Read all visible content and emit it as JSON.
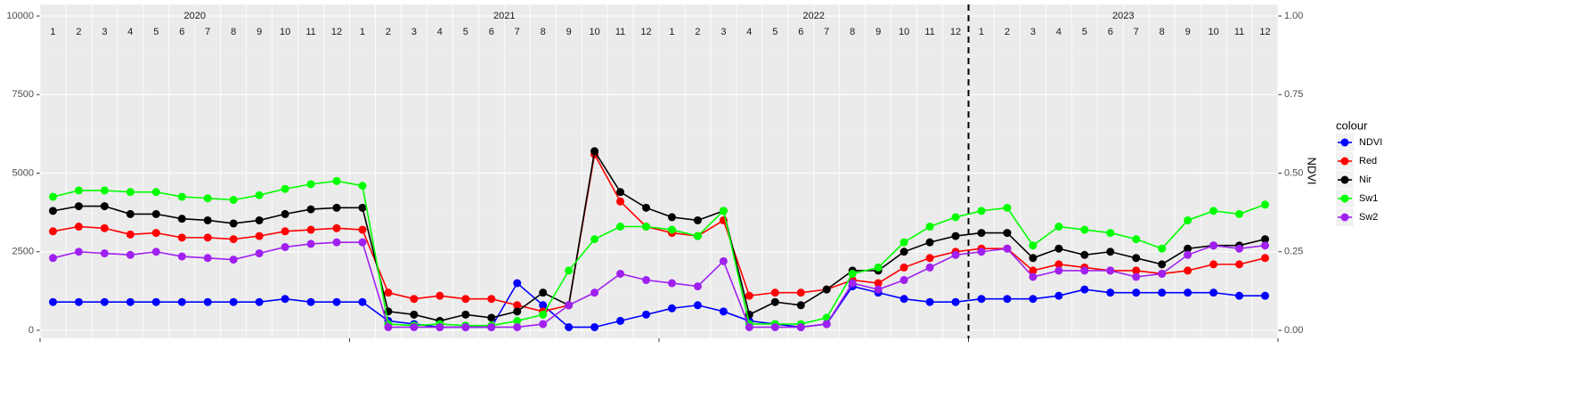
{
  "chart_data": {
    "type": "line",
    "x": [
      "2020-01",
      "2020-02",
      "2020-03",
      "2020-04",
      "2020-05",
      "2020-06",
      "2020-07",
      "2020-08",
      "2020-09",
      "2020-10",
      "2020-11",
      "2020-12",
      "2021-01",
      "2021-02",
      "2021-03",
      "2021-04",
      "2021-05",
      "2021-06",
      "2021-07",
      "2021-08",
      "2021-09",
      "2021-10",
      "2021-11",
      "2021-12",
      "2022-01",
      "2022-02",
      "2022-03",
      "2022-04",
      "2022-05",
      "2022-06",
      "2022-07",
      "2022-08",
      "2022-09",
      "2022-10",
      "2022-11",
      "2022-12",
      "2023-01",
      "2023-02",
      "2023-03",
      "2023-04",
      "2023-05",
      "2023-06",
      "2023-07",
      "2023-08",
      "2023-09",
      "2023-10",
      "2023-11",
      "2023-12"
    ],
    "years": [
      "2020",
      "2021",
      "2022",
      "2023"
    ],
    "months": [
      "1",
      "2",
      "3",
      "4",
      "5",
      "6",
      "7",
      "8",
      "9",
      "10",
      "11",
      "12"
    ],
    "vline_x": "2023-01",
    "ylim": [
      0,
      10000
    ],
    "yticks": [
      0,
      2500,
      5000,
      7500,
      10000
    ],
    "y2lim": [
      0,
      1
    ],
    "y2ticks": [
      {
        "value": 0,
        "label": "0.00"
      },
      {
        "value": 0.25,
        "label": "0.25"
      },
      {
        "value": 0.5,
        "label": "0.50"
      },
      {
        "value": 0.75,
        "label": "0.75"
      },
      {
        "value": 1,
        "label": "1.00"
      }
    ],
    "y2_label": "NDVI",
    "legend_title": "colour",
    "grid": true,
    "series": [
      {
        "name": "NDVI",
        "color": "#0000ff",
        "axis": "y2",
        "values": [
          0.09,
          0.09,
          0.09,
          0.09,
          0.09,
          0.09,
          0.09,
          0.09,
          0.09,
          0.1,
          0.09,
          0.09,
          0.09,
          0.03,
          0.02,
          0.01,
          0.01,
          0.01,
          0.15,
          0.08,
          0.01,
          0.01,
          0.03,
          0.05,
          0.07,
          0.08,
          0.06,
          0.03,
          0.02,
          0.01,
          0.02,
          0.14,
          0.12,
          0.1,
          0.09,
          0.09,
          0.1,
          0.1,
          0.1,
          0.11,
          0.13,
          0.12,
          0.12,
          0.12,
          0.12,
          0.12,
          0.11,
          0.11
        ]
      },
      {
        "name": "Red",
        "color": "#ff0000",
        "values": [
          3150,
          3300,
          3250,
          3050,
          3100,
          2950,
          2950,
          2900,
          3000,
          3150,
          3200,
          3250,
          3200,
          1200,
          1000,
          1100,
          1000,
          1000,
          800,
          600,
          800,
          5600,
          4100,
          3300,
          3100,
          3000,
          3500,
          1100,
          1200,
          1200,
          1300,
          1600,
          1500,
          2000,
          2300,
          2500,
          2600,
          2600,
          1900,
          2100,
          2000,
          1900,
          1900,
          1800,
          1900,
          2100,
          2100,
          2300
        ]
      },
      {
        "name": "Nir",
        "color": "#000000",
        "values": [
          3800,
          3950,
          3950,
          3700,
          3700,
          3550,
          3500,
          3400,
          3500,
          3700,
          3850,
          3900,
          3900,
          600,
          500,
          300,
          500,
          400,
          600,
          1200,
          800,
          5700,
          4400,
          3900,
          3600,
          3500,
          3800,
          500,
          900,
          800,
          1300,
          1900,
          1900,
          2500,
          2800,
          3000,
          3100,
          3100,
          2300,
          2600,
          2400,
          2500,
          2300,
          2100,
          2600,
          2700,
          2700,
          2900
        ]
      },
      {
        "name": "Sw1",
        "color": "#00ff00",
        "values": [
          4250,
          4450,
          4450,
          4400,
          4400,
          4250,
          4200,
          4150,
          4300,
          4500,
          4650,
          4750,
          4600,
          200,
          150,
          200,
          150,
          150,
          300,
          500,
          1900,
          2900,
          3300,
          3300,
          3200,
          3000,
          3800,
          200,
          200,
          200,
          400,
          1800,
          2000,
          2800,
          3300,
          3600,
          3800,
          3900,
          2700,
          3300,
          3200,
          3100,
          2900,
          2600,
          3500,
          3800,
          3700,
          4000
        ]
      },
      {
        "name": "Sw2",
        "color": "#a020f0",
        "values": [
          2300,
          2500,
          2450,
          2400,
          2500,
          2350,
          2300,
          2250,
          2450,
          2650,
          2750,
          2800,
          2800,
          100,
          100,
          100,
          100,
          100,
          100,
          200,
          800,
          1200,
          1800,
          1600,
          1500,
          1400,
          2200,
          100,
          100,
          100,
          200,
          1500,
          1300,
          1600,
          2000,
          2400,
          2500,
          2600,
          1700,
          1900,
          1900,
          1900,
          1700,
          1800,
          2400,
          2700,
          2600,
          2700
        ]
      }
    ]
  }
}
